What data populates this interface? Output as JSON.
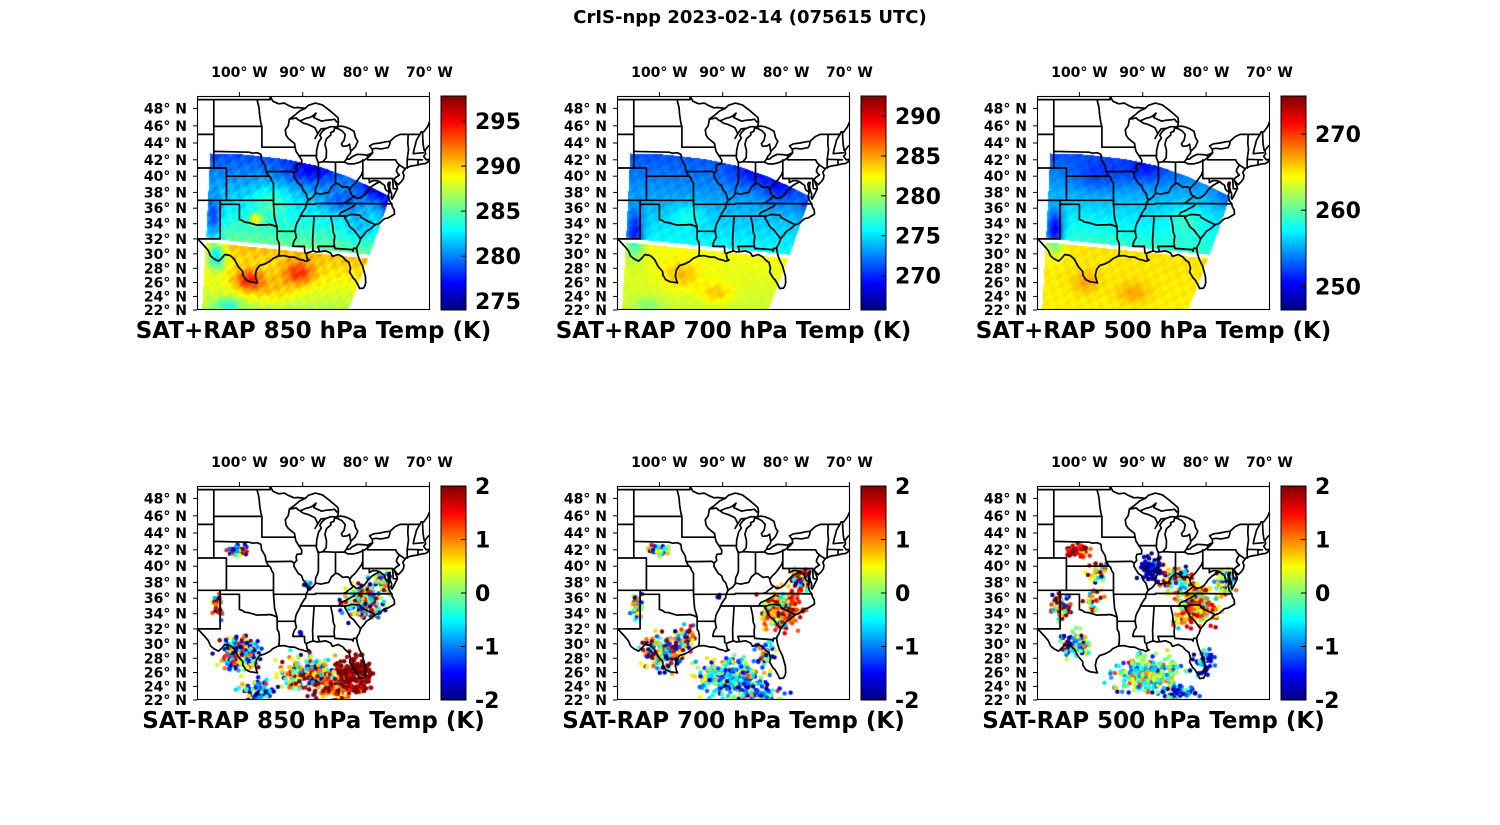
{
  "figure_title": "CrIS-npp 2023-02-14 (075615 UTC)",
  "colormap": "jet",
  "axes": {
    "lon_tick_labels": [
      "100° W",
      "90° W",
      "80° W",
      "70° W"
    ],
    "lon_tick_values": [
      -100,
      -90,
      -80,
      -70
    ],
    "lat_tick_labels": [
      "48° N",
      "46° N",
      "44° N",
      "42° N",
      "40° N",
      "38° N",
      "36° N",
      "34° N",
      "32° N",
      "30° N",
      "28° N",
      "26° N",
      "24° N",
      "22° N"
    ],
    "lat_tick_values": [
      48,
      46,
      44,
      42,
      40,
      38,
      36,
      34,
      32,
      30,
      28,
      26,
      24,
      22
    ],
    "lon_range": [
      -106.7,
      -69.9
    ],
    "lat_range": [
      22,
      49.4
    ]
  },
  "chart_data": [
    {
      "id": "sat_plus_rap_850",
      "title": "SAT+RAP 850 hPa Temp (K)",
      "row": 0,
      "col": 0,
      "type": "heatmap",
      "units": "K",
      "colorbar": {
        "min": 274.0,
        "max": 297.8,
        "ticks": [
          275,
          280,
          285,
          290,
          295
        ],
        "tick_labels": [
          "275",
          "280",
          "285",
          "290",
          "295"
        ]
      },
      "swath": {
        "polygon": [
          [
            -105.9,
            21.8
          ],
          [
            -104.6,
            42.75
          ],
          [
            -99,
            42.62
          ],
          [
            -93,
            42.1
          ],
          [
            -88,
            41.33
          ],
          [
            -83,
            40.0
          ],
          [
            -79,
            38.6
          ],
          [
            -76.2,
            37.5
          ],
          [
            -82.9,
            21.8
          ]
        ],
        "gap": {
          "lat_at_west": 31.95,
          "slope_per_lon": -0.0864,
          "half_width": 0.28
        }
      },
      "field": {
        "south_lo": 287.0,
        "south_hi": 290.5,
        "north_lo": 285.5,
        "north_hi": 278.5,
        "noise": 1.1,
        "blobs": [
          [
            -98.6,
            26.3,
            2.2,
            1.5,
            5
          ],
          [
            -90.6,
            27.3,
            2.4,
            1.6,
            4.5
          ],
          [
            -95,
            25,
            4,
            2,
            2
          ],
          [
            -103.6,
            29.6,
            1.4,
            1.8,
            -7
          ],
          [
            -101.8,
            22.8,
            2,
            1,
            -3.5
          ],
          [
            -104.2,
            34.5,
            1.3,
            2.8,
            -5
          ],
          [
            -97.4,
            34.6,
            0.9,
            0.7,
            6
          ],
          [
            -95,
            37,
            3,
            2,
            2.5
          ],
          [
            -78,
            38.8,
            3,
            2,
            -5
          ],
          [
            -84,
            36.8,
            3,
            1.5,
            -2.5
          ],
          [
            -88.5,
            40.8,
            4,
            1.8,
            -3
          ],
          [
            -76.2,
            36,
            1.5,
            1.5,
            -4
          ],
          [
            -81,
            33.5,
            2.5,
            2,
            -2
          ]
        ]
      }
    },
    {
      "id": "sat_plus_rap_700",
      "title": "SAT+RAP 700 hPa Temp (K)",
      "row": 0,
      "col": 1,
      "type": "heatmap",
      "units": "K",
      "colorbar": {
        "min": 265.7,
        "max": 292.5,
        "ticks": [
          270,
          275,
          280,
          285,
          290
        ],
        "tick_labels": [
          "270",
          "275",
          "280",
          "285",
          "290"
        ]
      },
      "swath": {
        "polygon": [
          [
            -105.9,
            21.8
          ],
          [
            -104.6,
            42.75
          ],
          [
            -99,
            42.62
          ],
          [
            -93,
            42.1
          ],
          [
            -88,
            41.33
          ],
          [
            -83,
            40.0
          ],
          [
            -79,
            38.6
          ],
          [
            -76.2,
            37.5
          ],
          [
            -82.9,
            21.8
          ]
        ],
        "gap": {
          "lat_at_west": 31.95,
          "slope_per_lon": -0.0864,
          "half_width": 0.28
        }
      },
      "field": {
        "south_lo": 281.0,
        "south_hi": 282.3,
        "north_lo": 276.0,
        "north_hi": 271.0,
        "noise": 0.8,
        "blobs": [
          [
            -103.9,
            32.5,
            1.4,
            3,
            -6
          ],
          [
            -96.5,
            27,
            3,
            2,
            2.5
          ],
          [
            -91,
            24.5,
            2.5,
            1.5,
            2.5
          ],
          [
            -80.5,
            38.5,
            3,
            2,
            -3
          ],
          [
            -85,
            40.5,
            4,
            1.8,
            -2.5
          ],
          [
            -95.5,
            35,
            2.5,
            1.5,
            2
          ],
          [
            -101.8,
            22.8,
            2,
            1,
            -2
          ],
          [
            -76.4,
            36.3,
            1.5,
            1.5,
            -2.5
          ]
        ]
      }
    },
    {
      "id": "sat_plus_rap_500",
      "title": "SAT+RAP 500 hPa Temp (K)",
      "row": 0,
      "col": 2,
      "type": "heatmap",
      "units": "K",
      "colorbar": {
        "min": 246.9,
        "max": 275.0,
        "ticks": [
          250,
          260,
          270
        ],
        "tick_labels": [
          "250",
          "260",
          "270"
        ]
      },
      "swath": {
        "polygon": [
          [
            -105.9,
            21.8
          ],
          [
            -104.6,
            42.75
          ],
          [
            -99,
            42.62
          ],
          [
            -93,
            42.1
          ],
          [
            -88,
            41.33
          ],
          [
            -83,
            40.0
          ],
          [
            -79,
            38.6
          ],
          [
            -76.2,
            37.5
          ],
          [
            -82.9,
            21.8
          ]
        ],
        "gap": {
          "lat_at_west": 31.95,
          "slope_per_lon": -0.0864,
          "half_width": 0.28
        }
      },
      "field": {
        "south_lo": 264.8,
        "south_hi": 265.2,
        "north_lo": 259.0,
        "north_hi": 252.5,
        "noise": 0.7,
        "blobs": [
          [
            -103.9,
            33,
            1.4,
            2.6,
            -8
          ],
          [
            -97,
            40,
            4,
            2,
            -2
          ],
          [
            -89.5,
            41,
            3.5,
            1.8,
            -2.5
          ],
          [
            -83,
            34.5,
            3,
            2,
            2
          ],
          [
            -99,
            26,
            2,
            1.5,
            2
          ],
          [
            -91.5,
            24.5,
            2.5,
            1.5,
            2
          ],
          [
            -76.5,
            37.5,
            2,
            1.5,
            -2
          ]
        ]
      }
    },
    {
      "id": "sat_minus_rap_850",
      "title": "SAT-RAP 850 hPa Temp (K)",
      "row": 1,
      "col": 0,
      "type": "scatter",
      "units": "K",
      "colorbar": {
        "min": -2,
        "max": 2,
        "ticks": [
          -2,
          -1,
          0,
          1,
          2
        ],
        "tick_labels": [
          "-2",
          "-1",
          "0",
          "1",
          "2"
        ]
      },
      "clusters": [
        [
          -100.2,
          41.9,
          1.4,
          0.7,
          45,
          0.2,
          1.7
        ],
        [
          -103.6,
          34.9,
          0.8,
          1.4,
          45,
          0.4,
          1.4
        ],
        [
          -99.8,
          28.6,
          3.0,
          2.3,
          170,
          -0.5,
          1.5
        ],
        [
          -97.3,
          23.3,
          2.6,
          1.4,
          70,
          -0.9,
          1.2
        ],
        [
          -88.8,
          25.8,
          4.2,
          2.4,
          240,
          0.4,
          1.2
        ],
        [
          -84.6,
          23.6,
          3.2,
          1.6,
          90,
          1.6,
          0.8
        ],
        [
          -81.8,
          25.9,
          2.4,
          2.4,
          150,
          2.3,
          0.4
        ],
        [
          -80.4,
          35.4,
          2.8,
          2.1,
          160,
          -0.1,
          1.3
        ],
        [
          -77.6,
          38.1,
          1.6,
          1.3,
          45,
          -0.7,
          1.2
        ],
        [
          -90.4,
          31.4,
          0.3,
          0.3,
          3,
          -1.9,
          0.2
        ],
        [
          -89.2,
          37.5,
          0.8,
          0.6,
          6,
          -1.4,
          0.8
        ]
      ]
    },
    {
      "id": "sat_minus_rap_700",
      "title": "SAT-RAP 700 hPa Temp (K)",
      "row": 1,
      "col": 1,
      "type": "scatter",
      "units": "K",
      "colorbar": {
        "min": -2,
        "max": 2,
        "ticks": [
          -2,
          -1,
          0,
          1,
          2
        ],
        "tick_labels": [
          "-2",
          "-1",
          "0",
          "1",
          "2"
        ]
      },
      "clusters": [
        [
          -100.2,
          41.9,
          1.4,
          0.7,
          40,
          0.3,
          1.4
        ],
        [
          -103.6,
          34.9,
          0.8,
          1.4,
          40,
          -0.2,
          0.9
        ],
        [
          -99.6,
          28.8,
          2.8,
          2.2,
          160,
          -0.1,
          1.4
        ],
        [
          -88.5,
          25.2,
          4.6,
          2.4,
          280,
          -0.5,
          0.8
        ],
        [
          -84.0,
          22.8,
          3.4,
          1.0,
          60,
          -0.5,
          1.0
        ],
        [
          -80.6,
          34.6,
          2.8,
          2.3,
          190,
          1.2,
          0.9
        ],
        [
          -77.9,
          38.4,
          1.6,
          1.6,
          55,
          0.7,
          1.3
        ],
        [
          -95.9,
          30.6,
          1.6,
          1.3,
          45,
          0.4,
          1.5
        ],
        [
          -90.6,
          36.5,
          0.4,
          0.4,
          3,
          -2.0,
          0.2
        ],
        [
          -83.2,
          28.6,
          1.6,
          1.6,
          35,
          -0.9,
          1.0
        ]
      ]
    },
    {
      "id": "sat_minus_rap_500",
      "title": "SAT-RAP 500 hPa Temp (K)",
      "row": 1,
      "col": 2,
      "type": "scatter",
      "units": "K",
      "colorbar": {
        "min": -2,
        "max": 2,
        "ticks": [
          -2,
          -1,
          0,
          1,
          2
        ],
        "tick_labels": [
          "-2",
          "-1",
          "0",
          "1",
          "2"
        ]
      },
      "clusters": [
        [
          -100.1,
          41.8,
          1.6,
          0.8,
          50,
          1.9,
          0.5
        ],
        [
          -97.6,
          39.3,
          1.9,
          1.2,
          28,
          0.4,
          1.4
        ],
        [
          -102.9,
          34.9,
          1.4,
          1.7,
          75,
          0.6,
          1.5
        ],
        [
          -97.9,
          35.9,
          1.6,
          1.1,
          28,
          1.1,
          0.8
        ],
        [
          -88.9,
          39.9,
          1.5,
          1.3,
          75,
          -1.9,
          0.4
        ],
        [
          -84.6,
          38.4,
          2.1,
          1.5,
          85,
          0.4,
          1.5
        ],
        [
          -81.6,
          35.1,
          3.2,
          2.3,
          240,
          0.9,
          0.7
        ],
        [
          -76.9,
          37.9,
          1.4,
          1.6,
          55,
          0.5,
          1.3
        ],
        [
          -100.6,
          29.9,
          2.3,
          1.6,
          95,
          -0.6,
          1.3
        ],
        [
          -89.3,
          25.6,
          4.6,
          2.3,
          270,
          -0.2,
          0.7
        ],
        [
          -84.6,
          23.1,
          2.6,
          1.1,
          55,
          -1.2,
          0.8
        ],
        [
          -80.4,
          27.4,
          1.4,
          1.6,
          40,
          -1.5,
          0.6
        ]
      ]
    }
  ]
}
